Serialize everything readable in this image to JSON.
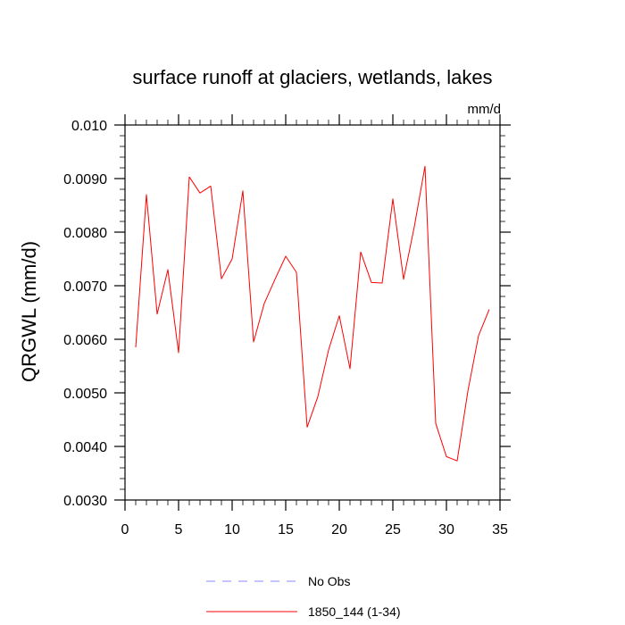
{
  "chart_data": {
    "type": "line",
    "title": "surface runoff at glaciers, wetlands, lakes",
    "units": "mm/d",
    "ylabel": "QRGWL  (mm/d)",
    "xlabel": "",
    "xlim": [
      0,
      35
    ],
    "ylim": [
      0.003,
      0.01
    ],
    "xticks": [
      0,
      5,
      10,
      15,
      20,
      25,
      30,
      35
    ],
    "xtick_labels": [
      "0",
      "5",
      "10",
      "15",
      "20",
      "25",
      "30",
      "35"
    ],
    "yticks": [
      0.003,
      0.004,
      0.005,
      0.006,
      0.007,
      0.008,
      0.009,
      0.01
    ],
    "ytick_labels": [
      "0.0030",
      "0.0040",
      "0.0050",
      "0.0060",
      "0.0070",
      "0.0080",
      "0.0090",
      "0.010"
    ],
    "grid": false,
    "legend_position": "bottom-center",
    "legend": [
      {
        "label": "No Obs",
        "color": "#8888ff",
        "style": "dashed"
      },
      {
        "label": "1850_144 (1-34)",
        "color": "#ff0000",
        "style": "solid"
      }
    ],
    "series": [
      {
        "name": "1850_144 (1-34)",
        "color": "#ff0000",
        "x": [
          1,
          2,
          3,
          4,
          5,
          6,
          7,
          8,
          9,
          10,
          11,
          12,
          13,
          14,
          15,
          16,
          17,
          18,
          19,
          20,
          21,
          22,
          23,
          24,
          25,
          26,
          27,
          28,
          29,
          30,
          31,
          32,
          33,
          34
        ],
        "values": [
          0.00585,
          0.0087,
          0.00647,
          0.0073,
          0.00575,
          0.00903,
          0.00873,
          0.00886,
          0.00713,
          0.0075,
          0.00877,
          0.00595,
          0.00667,
          0.00712,
          0.00755,
          0.00725,
          0.00436,
          0.00493,
          0.0058,
          0.00644,
          0.00545,
          0.00763,
          0.00706,
          0.00705,
          0.00862,
          0.00712,
          0.0081,
          0.00923,
          0.00443,
          0.00381,
          0.00373,
          0.00503,
          0.00607,
          0.00656
        ]
      }
    ]
  }
}
